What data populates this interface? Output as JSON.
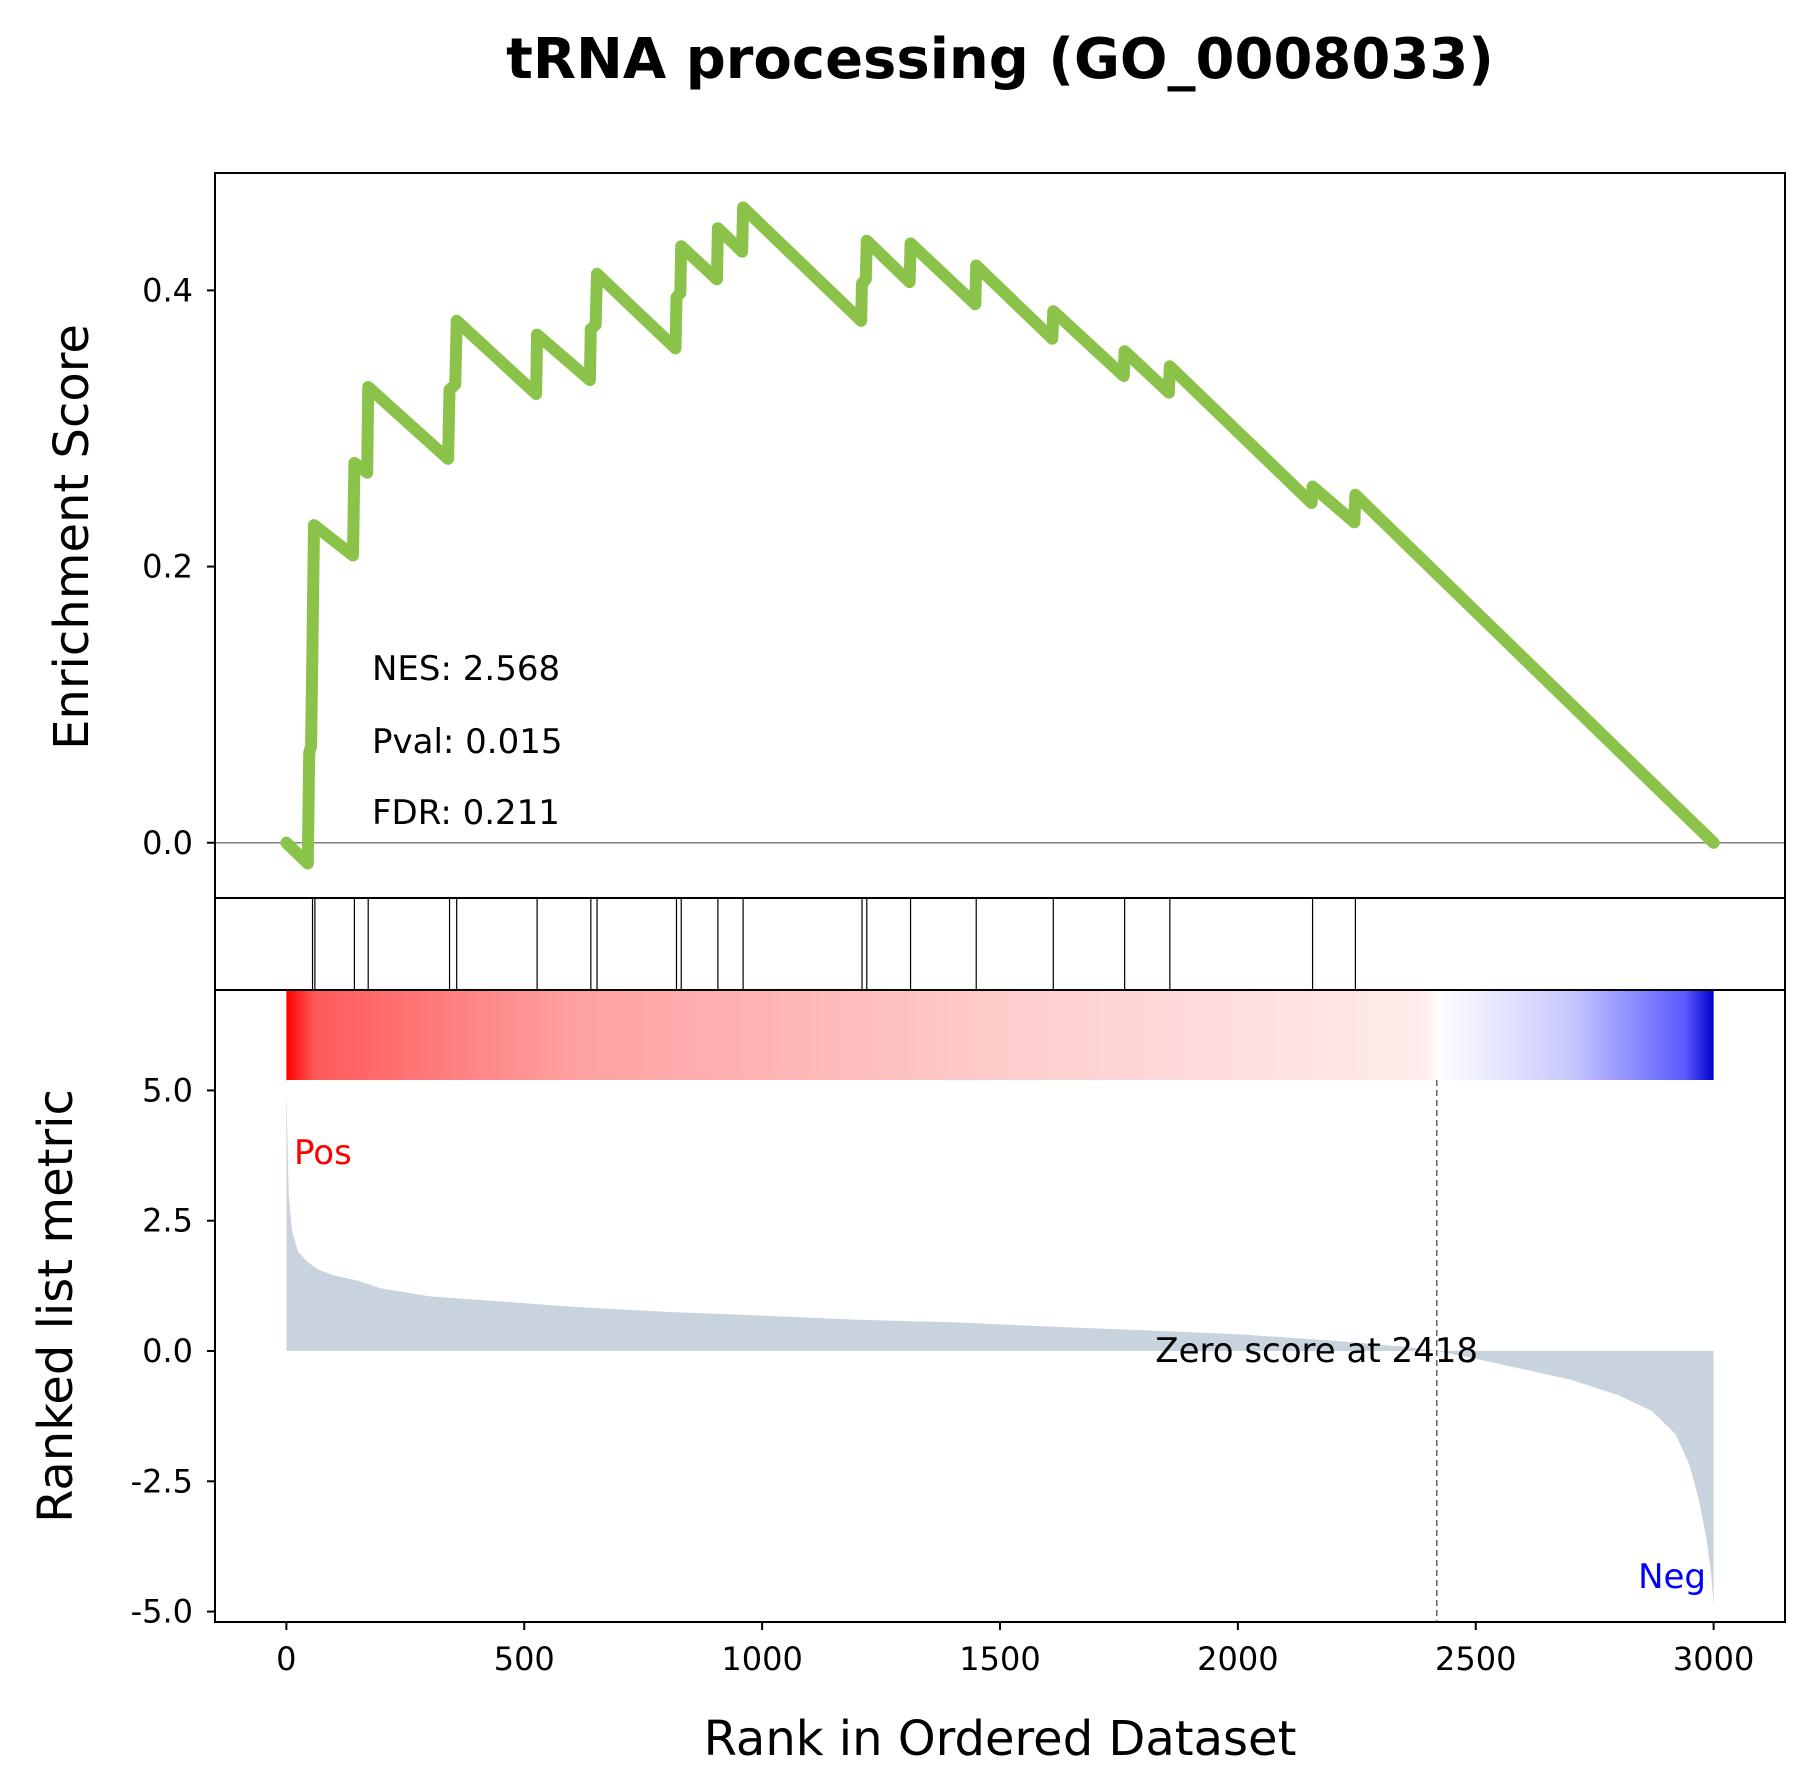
{
  "chart_data": {
    "type": "line",
    "title": "tRNA processing (GO_0008033)",
    "xlabel": "Rank in Ordered Dataset",
    "xlim": [
      -150,
      3150
    ],
    "x_ticks": [
      "0",
      "500",
      "1000",
      "1500",
      "2000",
      "2500",
      "3000"
    ],
    "x_tick_values": [
      0,
      500,
      1000,
      1500,
      2000,
      2500,
      3000
    ],
    "panels": {
      "enrichment": {
        "ylabel": "Enrichment Score",
        "ylim": [
          -0.04,
          0.485
        ],
        "y_ticks": [
          "0.0",
          "0.2",
          "0.4"
        ],
        "y_tick_values": [
          0.0,
          0.2,
          0.4
        ],
        "line_color": "#8bc34a",
        "points": [
          [
            0,
            0.0
          ],
          [
            45,
            -0.015
          ],
          [
            48,
            0.065
          ],
          [
            52,
            0.07
          ],
          [
            55,
            0.145
          ],
          [
            58,
            0.23
          ],
          [
            140,
            0.208
          ],
          [
            143,
            0.275
          ],
          [
            170,
            0.268
          ],
          [
            172,
            0.33
          ],
          [
            340,
            0.278
          ],
          [
            343,
            0.328
          ],
          [
            355,
            0.332
          ],
          [
            358,
            0.378
          ],
          [
            525,
            0.325
          ],
          [
            527,
            0.368
          ],
          [
            638,
            0.335
          ],
          [
            640,
            0.372
          ],
          [
            650,
            0.375
          ],
          [
            653,
            0.412
          ],
          [
            818,
            0.358
          ],
          [
            820,
            0.395
          ],
          [
            828,
            0.398
          ],
          [
            830,
            0.432
          ],
          [
            905,
            0.408
          ],
          [
            907,
            0.445
          ],
          [
            958,
            0.428
          ],
          [
            960,
            0.46
          ],
          [
            1208,
            0.378
          ],
          [
            1210,
            0.405
          ],
          [
            1218,
            0.408
          ],
          [
            1220,
            0.436
          ],
          [
            1310,
            0.406
          ],
          [
            1312,
            0.434
          ],
          [
            1448,
            0.39
          ],
          [
            1450,
            0.418
          ],
          [
            1610,
            0.365
          ],
          [
            1612,
            0.385
          ],
          [
            1760,
            0.338
          ],
          [
            1762,
            0.356
          ],
          [
            1855,
            0.326
          ],
          [
            1857,
            0.345
          ],
          [
            2155,
            0.246
          ],
          [
            2157,
            0.258
          ],
          [
            2245,
            0.232
          ],
          [
            2247,
            0.252
          ],
          [
            3000,
            0.0
          ]
        ],
        "hits": [
          55,
          60,
          143,
          172,
          343,
          358,
          527,
          640,
          653,
          820,
          830,
          907,
          960,
          1210,
          1220,
          1312,
          1450,
          1612,
          1762,
          1857,
          2157,
          2247
        ],
        "annotations": [
          "NES: 2.568",
          "Pval: 0.015",
          "FDR: 0.211"
        ]
      },
      "ranked_metric": {
        "ylabel": "Ranked list metric",
        "ylim": [
          -5.2,
          5.2
        ],
        "y_ticks": [
          "5.0",
          "2.5",
          "0.0",
          "-2.5",
          "-5.0"
        ],
        "y_tick_values": [
          5.0,
          2.5,
          0.0,
          -2.5,
          -5.0
        ],
        "fill_color": "#c9d3dd",
        "curve": [
          [
            0,
            5.0
          ],
          [
            5,
            3.0
          ],
          [
            12,
            2.3
          ],
          [
            25,
            1.9
          ],
          [
            45,
            1.7
          ],
          [
            70,
            1.55
          ],
          [
            100,
            1.45
          ],
          [
            150,
            1.35
          ],
          [
            200,
            1.2
          ],
          [
            300,
            1.05
          ],
          [
            450,
            0.95
          ],
          [
            600,
            0.85
          ],
          [
            800,
            0.75
          ],
          [
            1000,
            0.68
          ],
          [
            1200,
            0.6
          ],
          [
            1400,
            0.55
          ],
          [
            1600,
            0.47
          ],
          [
            1800,
            0.4
          ],
          [
            2000,
            0.32
          ],
          [
            2200,
            0.2
          ],
          [
            2350,
            0.08
          ],
          [
            2418,
            0.0
          ],
          [
            2500,
            -0.15
          ],
          [
            2600,
            -0.35
          ],
          [
            2700,
            -0.55
          ],
          [
            2800,
            -0.85
          ],
          [
            2870,
            -1.15
          ],
          [
            2920,
            -1.6
          ],
          [
            2950,
            -2.2
          ],
          [
            2970,
            -2.9
          ],
          [
            2985,
            -3.6
          ],
          [
            2995,
            -4.3
          ],
          [
            3000,
            -4.9
          ]
        ],
        "zero_cross_rank": 2418,
        "zero_label": "Zero score at 2418",
        "pos_label": "Pos",
        "neg_label": "Neg",
        "pos_color": "#ff0000",
        "neg_color": "#0000ff"
      }
    },
    "colorbar": {
      "from": "#ff0000",
      "mid": "#ffffff",
      "to": "#0000ff",
      "mid_rank": 2418
    },
    "grid": false
  }
}
